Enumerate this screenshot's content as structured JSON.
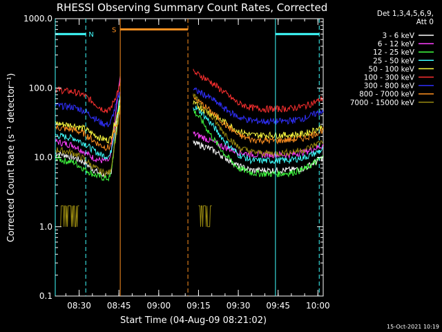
{
  "chart_data": {
    "type": "line",
    "title": "RHESSI Observing Summary Count Rates, Corrected",
    "xlabel": "Start Time (04-Aug-09 08:21:02)",
    "ylabel": "Corrected Count Rate (s⁻¹ detector⁻¹)",
    "yscale": "log",
    "ylim": [
      0.1,
      1000
    ],
    "xlim_minutes": [
      21.0,
      122.0
    ],
    "xtick_minutes": [
      30,
      45,
      60,
      75,
      90,
      105,
      120
    ],
    "xtick_labels": [
      "08:30",
      "08:45",
      "09:00",
      "09:15",
      "09:30",
      "09:45",
      "10:00"
    ],
    "ytick_values": [
      0.1,
      1,
      10,
      100,
      1000
    ],
    "ytick_labels": [
      "0.1",
      "1.0",
      "10.0",
      "100.0",
      "1000.0"
    ],
    "grid": false,
    "legend_position": "top-right outside",
    "legend_header": [
      "Det 1,3,4,5,6,9,",
      "Att 0"
    ],
    "series": [
      {
        "name": "3 - 6 keV",
        "color": "#ffffff",
        "x": [
          21,
          24,
          28,
          32,
          35,
          38,
          40,
          41.5,
          42,
          45.5
        ],
        "y": [
          11.5,
          11,
          10,
          8.5,
          6.8,
          5.8,
          5.5,
          5.4,
          6,
          80
        ]
      },
      {
        "name": "6 - 12 keV",
        "color": "#ff40ff",
        "x": [
          21,
          24,
          28,
          32,
          35,
          38,
          40,
          41.5,
          42,
          45.5
        ],
        "y": [
          17,
          16,
          15,
          12,
          10,
          9,
          9,
          9,
          11,
          150
        ]
      },
      {
        "name": "12 - 25 keV",
        "color": "#40ff40",
        "x": [
          21,
          24,
          28,
          32,
          35,
          38,
          40,
          41.5,
          42,
          45.5
        ],
        "y": [
          10,
          9,
          8.5,
          6.8,
          5.8,
          5.2,
          5,
          5,
          6,
          60
        ]
      },
      {
        "name": "25 - 50 keV",
        "color": "#40ffff",
        "x": [
          21,
          24,
          28,
          32,
          35,
          38,
          40,
          41.5,
          42,
          45.5
        ],
        "y": [
          21,
          20,
          19,
          16,
          13,
          11,
          10.5,
          10.5,
          12,
          80
        ]
      },
      {
        "name": "50 - 100 keV",
        "color": "#ffff40",
        "x": [
          21,
          24,
          28,
          32,
          35,
          38,
          40,
          41.5,
          42,
          45.5
        ],
        "y": [
          31,
          30,
          29,
          26,
          22,
          19,
          18,
          18,
          20,
          60
        ]
      },
      {
        "name": "100 - 300 keV",
        "color": "#ff3030",
        "x": [
          21,
          24,
          28,
          32,
          35,
          38,
          40,
          41.5,
          42,
          45.5
        ],
        "y": [
          95,
          92,
          88,
          78,
          64,
          52,
          48,
          48,
          52,
          110
        ]
      },
      {
        "name": "300 - 800 keV",
        "color": "#3030ff",
        "x": [
          21,
          24,
          28,
          32,
          35,
          38,
          40,
          41.5,
          42,
          45.5
        ],
        "y": [
          56,
          55,
          53,
          47,
          39,
          32,
          30,
          30,
          33,
          90
        ]
      },
      {
        "name": "800 - 7000 keV",
        "color": "#ff9020",
        "x": [
          21,
          24,
          28,
          32,
          35,
          38,
          40,
          41.5,
          42,
          45.5
        ],
        "y": [
          27,
          26,
          25,
          22,
          18,
          15,
          14,
          14,
          16,
          45
        ]
      },
      {
        "name": "7000 - 15000 keV",
        "color": "#9a8a10",
        "x": [
          21,
          24,
          28,
          32,
          35,
          38,
          40,
          41.5,
          42,
          45.5
        ],
        "y": [
          13,
          12.5,
          11.5,
          9.5,
          7.5,
          6.3,
          6,
          6,
          7,
          50
        ]
      }
    ],
    "series_after": [
      {
        "name": "3 - 6 keV",
        "x": [
          73,
          76,
          80,
          85,
          90,
          95,
          100,
          105,
          110,
          115,
          120,
          122
        ],
        "y": [
          16,
          15,
          13,
          10,
          7.5,
          6.5,
          6.5,
          6.5,
          6.6,
          7,
          9,
          10
        ]
      },
      {
        "name": "6 - 12 keV",
        "x": [
          73,
          76,
          80,
          85,
          90,
          95,
          100,
          105,
          110,
          115,
          120,
          122
        ],
        "y": [
          22,
          20,
          17,
          14,
          12,
          11,
          11,
          11,
          11,
          12,
          14,
          15
        ]
      },
      {
        "name": "12 - 25 keV",
        "x": [
          73,
          76,
          80,
          85,
          90,
          95,
          100,
          105,
          110,
          115,
          120,
          122
        ],
        "y": [
          48,
          35,
          20,
          11,
          7,
          6,
          5.8,
          5.8,
          6,
          6.8,
          9,
          10
        ]
      },
      {
        "name": "25 - 50 keV",
        "x": [
          73,
          76,
          80,
          85,
          90,
          95,
          100,
          105,
          110,
          115,
          120,
          122
        ],
        "y": [
          55,
          45,
          30,
          17,
          11,
          9,
          9,
          9,
          9.2,
          10,
          12,
          13
        ]
      },
      {
        "name": "50 - 100 keV",
        "x": [
          73,
          76,
          80,
          85,
          90,
          95,
          100,
          105,
          110,
          115,
          120,
          122
        ],
        "y": [
          60,
          52,
          42,
          32,
          24,
          21,
          21,
          21,
          21,
          22,
          26,
          28
        ]
      },
      {
        "name": "100 - 300 keV",
        "x": [
          73,
          76,
          80,
          85,
          90,
          95,
          100,
          105,
          110,
          115,
          120,
          122
        ],
        "y": [
          170,
          150,
          120,
          85,
          60,
          52,
          50,
          50,
          51,
          55,
          65,
          72
        ]
      },
      {
        "name": "300 - 800 keV",
        "x": [
          73,
          76,
          80,
          85,
          90,
          95,
          100,
          105,
          110,
          115,
          120,
          122
        ],
        "y": [
          95,
          85,
          70,
          50,
          38,
          34,
          33,
          33,
          34,
          37,
          44,
          48
        ]
      },
      {
        "name": "800 - 7000 keV",
        "x": [
          73,
          76,
          80,
          85,
          90,
          95,
          100,
          105,
          110,
          115,
          120,
          122
        ],
        "y": [
          72,
          60,
          45,
          30,
          21,
          18,
          17.5,
          17.5,
          18,
          19,
          23,
          25
        ]
      },
      {
        "name": "7000 - 15000 keV",
        "x": [
          73,
          76,
          80,
          85,
          90,
          95,
          100,
          105,
          110,
          115,
          120,
          122
        ],
        "y": [
          78,
          58,
          38,
          22,
          14,
          12,
          11.5,
          11.5,
          12,
          13,
          16,
          17
        ]
      }
    ],
    "atten_bursts": {
      "color": "#9a8a10",
      "ranges": [
        [
          23,
          30
        ],
        [
          75,
          80
        ]
      ],
      "y_high": 2.0,
      "y_low": 1.0
    },
    "markers": [
      {
        "label": "N",
        "color": "#40ffff",
        "x_start": 21.0,
        "x_end": 32.5,
        "y": 600
      },
      {
        "label": "S",
        "color": "#ff9020",
        "x_start": 45.5,
        "x_end": 71.0,
        "y": 700
      },
      {
        "label": "",
        "color": "#40ffff",
        "x_start": 104.0,
        "x_end": 120.5,
        "y": 600
      }
    ],
    "vlines": [
      {
        "x": 21.0,
        "color": "#40ffff",
        "dash": false
      },
      {
        "x": 32.5,
        "color": "#40ffff",
        "dash": true
      },
      {
        "x": 45.5,
        "color": "#ff9020",
        "dash": false
      },
      {
        "x": 71.0,
        "color": "#ff9020",
        "dash": true
      },
      {
        "x": 104.0,
        "color": "#40ffff",
        "dash": false
      },
      {
        "x": 120.5,
        "color": "#40ffff",
        "dash": true
      }
    ],
    "footer_timestamp": "15-Oct-2021 10:19"
  }
}
